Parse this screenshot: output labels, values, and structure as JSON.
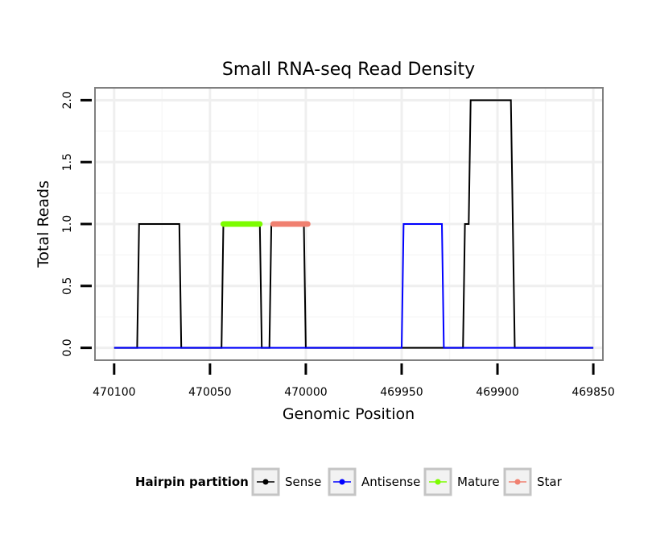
{
  "chart_data": {
    "type": "line",
    "title": "Small RNA-seq Read Density",
    "xlabel": "Genomic Position",
    "ylabel": "Total Reads",
    "xlim": [
      470110,
      469845
    ],
    "ylim": [
      -0.1,
      2.1
    ],
    "x_reversed": true,
    "x_ticks": [
      470100,
      470050,
      470000,
      469950,
      469900,
      469850
    ],
    "x_tick_labels": [
      "470100",
      "470050",
      "470000",
      "469950",
      "469900",
      "469850"
    ],
    "y_ticks": [
      0,
      0.5,
      1,
      1.5,
      2
    ],
    "y_tick_labels": [
      "0.0",
      "0.5",
      "1.0",
      "1.5",
      "2.0"
    ],
    "grid": true,
    "legend": {
      "title": "Hairpin partition",
      "position": "bottom",
      "entries": [
        {
          "name": "Sense",
          "color": "#000000"
        },
        {
          "name": "Antisense",
          "color": "#0000ff"
        },
        {
          "name": "Mature",
          "color": "#7cfc00"
        },
        {
          "name": "Star",
          "color": "#f08070"
        }
      ]
    },
    "series": [
      {
        "name": "Sense",
        "color": "#000000",
        "x": [
          470100,
          470088,
          470087,
          470066,
          470065,
          470044,
          470043,
          470024,
          470023,
          470019,
          470018,
          470001,
          470000,
          469918,
          469917,
          469915,
          469914,
          469910,
          469909,
          469893,
          469891,
          469850
        ],
        "y": [
          0,
          0,
          1,
          1,
          0,
          0,
          1,
          1,
          0,
          0,
          1,
          1,
          0,
          0,
          1,
          1,
          2,
          2,
          2,
          2,
          0,
          0
        ]
      },
      {
        "name": "Antisense",
        "color": "#0000ff",
        "x": [
          470100,
          469950,
          469949,
          469929,
          469928,
          469850
        ],
        "y": [
          0,
          0,
          1,
          1,
          0,
          0
        ]
      },
      {
        "name": "Mature",
        "color": "#7cfc00",
        "x": [
          470043,
          470024
        ],
        "y": [
          1,
          1
        ]
      },
      {
        "name": "Star",
        "color": "#f08070",
        "x": [
          470017,
          469999
        ],
        "y": [
          1,
          1
        ]
      }
    ]
  }
}
